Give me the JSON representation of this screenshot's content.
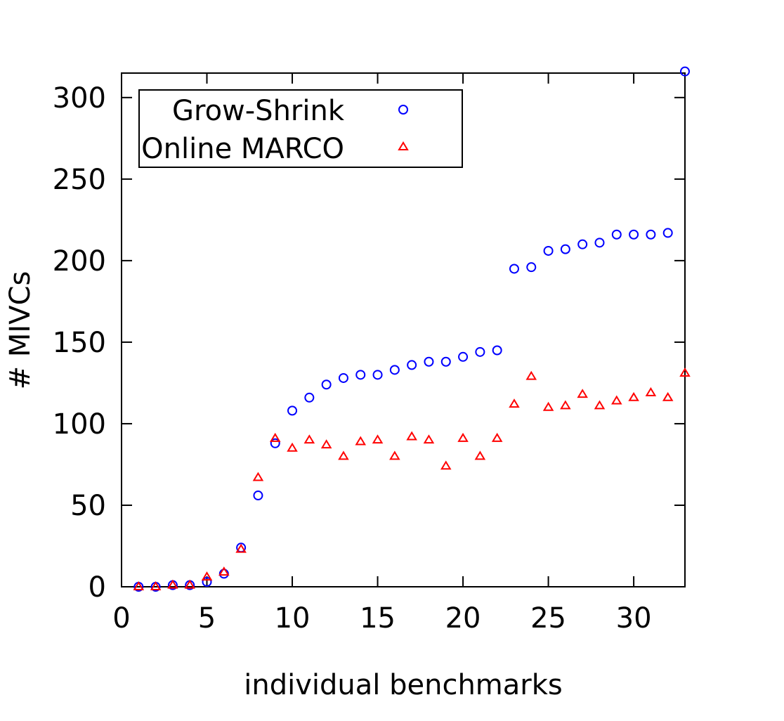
{
  "chart_data": {
    "type": "scatter",
    "title": "",
    "xlabel": "individual benchmarks",
    "ylabel": "# MIVCs",
    "xlim": [
      0,
      33
    ],
    "ylim": [
      0,
      315
    ],
    "xticks": [
      0,
      5,
      10,
      15,
      20,
      25,
      30
    ],
    "yticks": [
      0,
      50,
      100,
      150,
      200,
      250,
      300
    ],
    "grid": false,
    "legend_position": "top-left",
    "series": [
      {
        "name": "Grow-Shrink",
        "marker": "circle",
        "color": "#0000ff",
        "x": [
          1,
          2,
          3,
          4,
          5,
          6,
          7,
          8,
          9,
          10,
          11,
          12,
          13,
          14,
          15,
          16,
          17,
          18,
          19,
          20,
          21,
          22,
          23,
          24,
          25,
          26,
          27,
          28,
          29,
          30,
          31,
          32,
          33
        ],
        "y": [
          0,
          0,
          1,
          1,
          3,
          8,
          24,
          56,
          88,
          108,
          116,
          124,
          128,
          130,
          130,
          133,
          136,
          138,
          138,
          141,
          144,
          145,
          195,
          196,
          206,
          207,
          210,
          211,
          216,
          216,
          216,
          217,
          316
        ]
      },
      {
        "name": "Online MARCO",
        "marker": "triangle",
        "color": "#ff0000",
        "x": [
          1,
          2,
          3,
          4,
          5,
          6,
          7,
          8,
          9,
          10,
          11,
          12,
          13,
          14,
          15,
          16,
          17,
          18,
          19,
          20,
          21,
          22,
          23,
          24,
          25,
          26,
          27,
          28,
          29,
          30,
          31,
          32,
          33
        ],
        "y": [
          0,
          0,
          1,
          1,
          6,
          9,
          23,
          67,
          91,
          85,
          90,
          87,
          80,
          89,
          90,
          80,
          92,
          90,
          74,
          91,
          80,
          91,
          112,
          129,
          110,
          111,
          118,
          111,
          114,
          116,
          119,
          116,
          131
        ]
      }
    ]
  }
}
